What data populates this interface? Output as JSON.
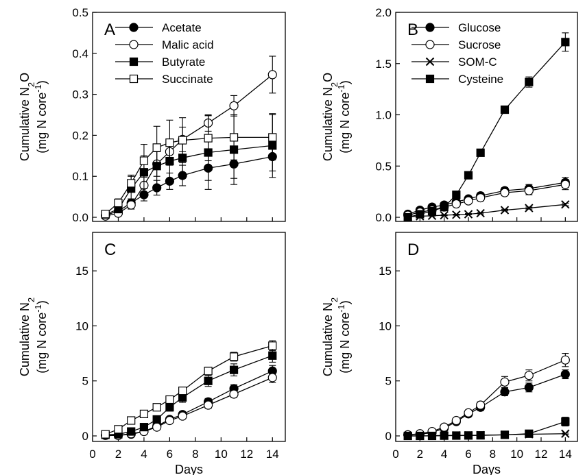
{
  "chart_data": [
    {
      "panel": "A",
      "type": "line",
      "xlabel": "",
      "ylabel": "Cumulative N2O",
      "ylabel_unit": "(mg N core-1)",
      "xlim": [
        0,
        15
      ],
      "ylim": [
        -0.01,
        0.5
      ],
      "xticks": [
        0,
        2,
        4,
        6,
        8,
        10,
        12,
        14
      ],
      "yticks": [
        0.0,
        0.1,
        0.2,
        0.3,
        0.4,
        0.5
      ],
      "ytick_labels": [
        "0.0",
        "0.1",
        "0.2",
        "0.3",
        "0.4",
        "0.5"
      ],
      "x": [
        1,
        2,
        3,
        4,
        5,
        6,
        7,
        9,
        11,
        14
      ],
      "legend": "top-left",
      "series": [
        {
          "name": "Acetate",
          "marker": "filled-circle",
          "y": [
            0.005,
            0.015,
            0.035,
            0.055,
            0.072,
            0.088,
            0.102,
            0.12,
            0.13,
            0.148
          ],
          "err": [
            0.004,
            0.005,
            0.01,
            0.015,
            0.018,
            0.02,
            0.025,
            0.03,
            0.035,
            0.035
          ]
        },
        {
          "name": "Malic acid",
          "marker": "open-circle",
          "y": [
            0.003,
            0.01,
            0.03,
            0.078,
            0.13,
            0.16,
            0.19,
            0.23,
            0.272,
            0.348
          ],
          "err": [
            0.003,
            0.005,
            0.01,
            0.02,
            0.03,
            0.03,
            0.03,
            0.02,
            0.025,
            0.045
          ]
        },
        {
          "name": "Butyrate",
          "marker": "filled-square",
          "y": [
            0.007,
            0.02,
            0.07,
            0.11,
            0.125,
            0.137,
            0.145,
            0.158,
            0.165,
            0.175
          ],
          "err": [
            0.004,
            0.008,
            0.03,
            0.04,
            0.05,
            0.05,
            0.05,
            0.09,
            0.085,
            0.078
          ]
        },
        {
          "name": "Succinate",
          "marker": "open-square",
          "y": [
            0.008,
            0.035,
            0.083,
            0.138,
            0.17,
            0.182,
            0.188,
            0.193,
            0.195,
            0.195
          ],
          "err": [
            0.004,
            0.01,
            0.02,
            0.04,
            0.052,
            0.055,
            0.055,
            0.055,
            0.055,
            0.055
          ]
        }
      ]
    },
    {
      "panel": "B",
      "type": "line",
      "xlabel": "",
      "ylabel": "Cumulative N2O",
      "ylabel_unit": "(mg N core-1)",
      "xlim": [
        0,
        15
      ],
      "ylim": [
        -0.04,
        2.0
      ],
      "xticks": [
        0,
        2,
        4,
        6,
        8,
        10,
        12,
        14
      ],
      "yticks": [
        0.0,
        0.5,
        1.0,
        1.5,
        2.0
      ],
      "ytick_labels": [
        "0.0",
        "0.5",
        "1.0",
        "1.5",
        "2.0"
      ],
      "x": [
        1,
        2,
        3,
        4,
        5,
        6,
        7,
        9,
        11,
        14
      ],
      "legend": "top-left",
      "series": [
        {
          "name": "Glucose",
          "marker": "filled-circle",
          "y": [
            0.03,
            0.07,
            0.1,
            0.12,
            0.15,
            0.18,
            0.21,
            0.26,
            0.28,
            0.34
          ],
          "err": [
            0.01,
            0.01,
            0.02,
            0.02,
            0.02,
            0.02,
            0.03,
            0.03,
            0.04,
            0.05
          ]
        },
        {
          "name": "Sucrose",
          "marker": "open-circle",
          "y": [
            0.02,
            0.05,
            0.07,
            0.1,
            0.13,
            0.16,
            0.19,
            0.24,
            0.26,
            0.32
          ],
          "err": [
            0.01,
            0.01,
            0.02,
            0.02,
            0.02,
            0.02,
            0.03,
            0.03,
            0.04,
            0.05
          ]
        },
        {
          "name": "SOM-C",
          "marker": "cross",
          "y": [
            0.005,
            0.01,
            0.015,
            0.02,
            0.025,
            0.03,
            0.04,
            0.07,
            0.09,
            0.125
          ],
          "err": [
            0.003,
            0.003,
            0.004,
            0.005,
            0.005,
            0.006,
            0.007,
            0.008,
            0.01,
            0.012
          ]
        },
        {
          "name": "Cysteine",
          "marker": "filled-square",
          "y": [
            0.0,
            0.03,
            0.06,
            0.1,
            0.22,
            0.41,
            0.63,
            1.05,
            1.32,
            1.71
          ],
          "err": [
            0.005,
            0.01,
            0.015,
            0.02,
            0.03,
            0.03,
            0.03,
            0.03,
            0.05,
            0.09
          ]
        }
      ]
    },
    {
      "panel": "C",
      "type": "line",
      "xlabel": "Days",
      "ylabel": "Cumulative N2",
      "ylabel_unit": "(mg N core-1)",
      "xlim": [
        0,
        15
      ],
      "ylim": [
        -0.5,
        18.5
      ],
      "xticks": [
        0,
        2,
        4,
        6,
        8,
        10,
        12,
        14
      ],
      "yticks": [
        0,
        5,
        10,
        15
      ],
      "ytick_labels": [
        "0",
        "5",
        "10",
        "15"
      ],
      "x": [
        1,
        2,
        3,
        4,
        5,
        6,
        7,
        9,
        11,
        14
      ],
      "series": [
        {
          "name": "Acetate",
          "marker": "filled-circle",
          "y": [
            0.05,
            0.05,
            0.15,
            0.4,
            0.9,
            1.5,
            1.95,
            3.1,
            4.3,
            5.9
          ],
          "err": [
            0.03,
            0.05,
            0.1,
            0.1,
            0.15,
            0.2,
            0.25,
            0.3,
            0.35,
            0.5
          ]
        },
        {
          "name": "Malic acid",
          "marker": "open-circle",
          "y": [
            0.05,
            0.05,
            0.2,
            0.4,
            0.8,
            1.4,
            1.8,
            2.8,
            3.8,
            5.3
          ],
          "err": [
            0.03,
            0.05,
            0.1,
            0.1,
            0.15,
            0.2,
            0.2,
            0.3,
            0.3,
            0.45
          ]
        },
        {
          "name": "Butyrate",
          "marker": "filled-square",
          "y": [
            0.1,
            0.15,
            0.4,
            0.8,
            1.5,
            2.6,
            3.5,
            5.0,
            6.0,
            7.3
          ],
          "err": [
            0.05,
            0.1,
            0.15,
            0.2,
            0.3,
            0.35,
            0.45,
            0.5,
            0.55,
            0.6
          ]
        },
        {
          "name": "Succinate",
          "marker": "open-square",
          "y": [
            0.15,
            0.6,
            1.4,
            2.0,
            2.6,
            3.3,
            4.1,
            5.9,
            7.2,
            8.2
          ],
          "err": [
            0.05,
            0.1,
            0.15,
            0.2,
            0.25,
            0.3,
            0.3,
            0.35,
            0.4,
            0.45
          ]
        }
      ]
    },
    {
      "panel": "D",
      "type": "line",
      "xlabel": "Days",
      "ylabel": "Cumulative N2",
      "ylabel_unit": "(mg N core-1)",
      "xlim": [
        0,
        15
      ],
      "ylim": [
        -0.5,
        18.5
      ],
      "xticks": [
        0,
        2,
        4,
        6,
        8,
        10,
        12,
        14
      ],
      "yticks": [
        0,
        5,
        10,
        15
      ],
      "ytick_labels": [
        "0",
        "5",
        "10",
        "15"
      ],
      "x": [
        1,
        2,
        3,
        4,
        5,
        6,
        7,
        9,
        11,
        14
      ],
      "series": [
        {
          "name": "Glucose",
          "marker": "filled-circle",
          "y": [
            0.1,
            0.15,
            0.3,
            0.7,
            1.3,
            2.0,
            2.6,
            4.0,
            4.4,
            5.6
          ],
          "err": [
            0.05,
            0.05,
            0.1,
            0.15,
            0.2,
            0.25,
            0.3,
            0.35,
            0.4,
            0.4
          ]
        },
        {
          "name": "Sucrose",
          "marker": "open-circle",
          "y": [
            0.1,
            0.2,
            0.4,
            0.8,
            1.4,
            2.1,
            2.8,
            4.9,
            5.5,
            6.9
          ],
          "err": [
            0.05,
            0.05,
            0.1,
            0.15,
            0.2,
            0.25,
            0.3,
            0.5,
            0.5,
            0.6
          ]
        },
        {
          "name": "SOM-C",
          "marker": "cross",
          "y": [
            0.0,
            0.0,
            0.02,
            0.04,
            0.05,
            0.05,
            0.07,
            0.1,
            0.15,
            0.2
          ],
          "err": [
            0.02,
            0.02,
            0.02,
            0.03,
            0.03,
            0.03,
            0.03,
            0.04,
            0.05,
            0.05
          ]
        },
        {
          "name": "Cysteine",
          "marker": "filled-square",
          "y": [
            0.0,
            0.0,
            0.0,
            0.02,
            0.03,
            0.04,
            0.05,
            0.1,
            0.2,
            1.3
          ],
          "err": [
            0.02,
            0.02,
            0.02,
            0.02,
            0.03,
            0.03,
            0.03,
            0.05,
            0.1,
            0.4
          ]
        }
      ]
    }
  ]
}
